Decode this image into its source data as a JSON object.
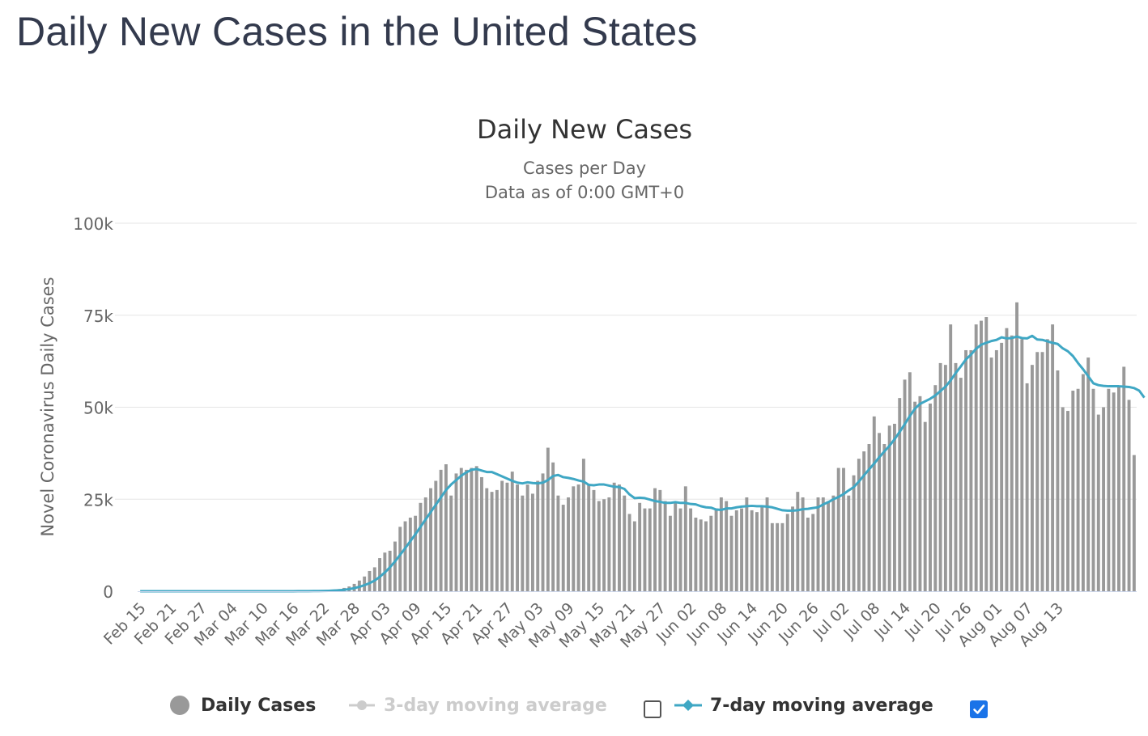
{
  "page": {
    "heading": "Daily New Cases in the United States"
  },
  "colors": {
    "bars": "#999999",
    "line7": "#3fa7c4",
    "grid": "#e6e6e6",
    "axis": "#ccd6eb",
    "checkbox_checked": "#1a73e8"
  },
  "legend": {
    "items": [
      {
        "label": "Daily Cases",
        "state": "on",
        "marker": "circle"
      },
      {
        "label": "3-day moving average",
        "state": "off",
        "marker": "line-circle",
        "checkbox_checked": false
      },
      {
        "label": "7-day moving average",
        "state": "on",
        "marker": "line-diamond",
        "checkbox_checked": true
      }
    ]
  },
  "chart_data": {
    "type": "bar",
    "title": "Daily New Cases",
    "subtitle_lines": [
      "Cases per Day",
      "Data as of 0:00 GMT+0"
    ],
    "ylabel": "Novel Coronavirus Daily Cases",
    "xlabel": "",
    "ylim": [
      0,
      100000
    ],
    "yticks": [
      0,
      25000,
      50000,
      75000,
      100000
    ],
    "ytick_labels": [
      "0",
      "25k",
      "50k",
      "75k",
      "100k"
    ],
    "x_tick_labels": [
      "Feb 15",
      "Feb 21",
      "Feb 27",
      "Mar 04",
      "Mar 10",
      "Mar 16",
      "Mar 22",
      "Mar 28",
      "Apr 03",
      "Apr 09",
      "Apr 15",
      "Apr 21",
      "Apr 27",
      "May 03",
      "May 09",
      "May 15",
      "May 21",
      "May 27",
      "Jun 02",
      "Jun 08",
      "Jun 14",
      "Jun 20",
      "Jun 26",
      "Jul 02",
      "Jul 08",
      "Jul 14",
      "Jul 20",
      "Jul 26",
      "Aug 01",
      "Aug 07",
      "Aug 13"
    ],
    "x_tick_every_days": 6,
    "start_label": "Feb 15",
    "legend_position": "bottom-center",
    "grid": true,
    "series": [
      {
        "name": "Daily Cases",
        "type": "bar",
        "values": [
          0,
          0,
          0,
          0,
          0,
          0,
          0,
          0,
          0,
          0,
          0,
          0,
          0,
          0,
          0,
          0,
          0,
          0,
          0,
          0,
          0,
          0,
          0,
          0,
          0,
          0,
          0,
          0,
          0,
          10,
          20,
          30,
          40,
          60,
          80,
          100,
          130,
          250,
          400,
          600,
          900,
          1300,
          2000,
          2900,
          4000,
          5500,
          6500,
          9000,
          10500,
          11000,
          13500,
          17500,
          19000,
          20000,
          20500,
          24000,
          25500,
          28000,
          30000,
          33000,
          34500,
          26000,
          32000,
          33500,
          33000,
          33500,
          34000,
          31000,
          28000,
          27000,
          27500,
          30000,
          29500,
          32500,
          29000,
          26000,
          29000,
          26500,
          30000,
          32000,
          39000,
          35000,
          26000,
          23500,
          25500,
          28500,
          29000,
          36000,
          29000,
          27500,
          24500,
          25000,
          25500,
          29500,
          29000,
          26000,
          21000,
          19000,
          24000,
          22500,
          22500,
          28000,
          27500,
          24500,
          20500,
          24000,
          22500,
          28500,
          22500,
          20000,
          19500,
          19000,
          20500,
          22500,
          25500,
          24500,
          20500,
          22000,
          22500,
          25500,
          22000,
          21500,
          23000,
          25500,
          18500,
          18500,
          18500,
          21000,
          23000,
          27000,
          25500,
          20000,
          21000,
          25500,
          25500,
          24500,
          26000,
          33500,
          33500,
          26000,
          31500,
          36000,
          38000,
          40000,
          47500,
          43000,
          40000,
          45000,
          45500,
          52500,
          57500,
          59500,
          51500,
          53000,
          46000,
          51000,
          56000,
          62000,
          61500,
          72500,
          62000,
          58000,
          65500,
          65500,
          72500,
          73500,
          74500,
          63500,
          65500,
          67500,
          71500,
          69500,
          78500,
          68500,
          56500,
          61500,
          65000,
          65000,
          68500,
          72500,
          60000,
          50000,
          49000,
          54500,
          55000,
          59000,
          63500,
          55000,
          48000,
          50000,
          55000,
          54000,
          55500,
          61000,
          52000,
          37000
        ]
      },
      {
        "name": "7-day moving average",
        "type": "line",
        "values": [
          0,
          0,
          0,
          0,
          0,
          0,
          0,
          0,
          0,
          0,
          0,
          0,
          0,
          0,
          0,
          0,
          0,
          0,
          0,
          0,
          0,
          0,
          0,
          0,
          0,
          0,
          0,
          0,
          0,
          5,
          10,
          15,
          20,
          30,
          45,
          60,
          80,
          120,
          180,
          260,
          380,
          560,
          830,
          1200,
          1650,
          2200,
          2900,
          3900,
          5100,
          6500,
          8100,
          9900,
          11700,
          13600,
          15500,
          17500,
          19500,
          21500,
          23500,
          25500,
          27500,
          29000,
          30200,
          31400,
          32300,
          33000,
          33200,
          32800,
          32400,
          32400,
          31800,
          31200,
          30600,
          30000,
          29500,
          29300,
          29600,
          29400,
          29300,
          29500,
          30200,
          31300,
          31600,
          31000,
          30800,
          30500,
          30100,
          29800,
          28900,
          28800,
          29000,
          29000,
          28700,
          28400,
          28300,
          27800,
          26300,
          25300,
          25400,
          25300,
          24900,
          24500,
          24300,
          24000,
          24000,
          24200,
          24000,
          24000,
          23700,
          23600,
          23100,
          22800,
          22700,
          22200,
          22100,
          22500,
          22500,
          22800,
          23000,
          23100,
          23200,
          23100,
          23100,
          23000,
          22800,
          22400,
          22000,
          21900,
          21900,
          22000,
          22300,
          22400,
          22600,
          22800,
          23600,
          24200,
          25000,
          25600,
          26400,
          27400,
          28300,
          29800,
          31500,
          33100,
          34700,
          36400,
          38000,
          39500,
          41300,
          43300,
          45400,
          47600,
          49600,
          50900,
          51600,
          52300,
          53200,
          54400,
          55600,
          57300,
          59300,
          61100,
          63000,
          64300,
          65900,
          67000,
          67500,
          68000,
          68300,
          69000,
          68700,
          68800,
          69200,
          68800,
          68700,
          69400,
          68400,
          68300,
          67900,
          67500,
          67200,
          66000,
          65200,
          63900,
          62000,
          60300,
          58400,
          56500,
          56000,
          55800,
          55700,
          55700,
          55700,
          55600,
          55500,
          55200,
          54500,
          52600
        ]
      }
    ]
  }
}
